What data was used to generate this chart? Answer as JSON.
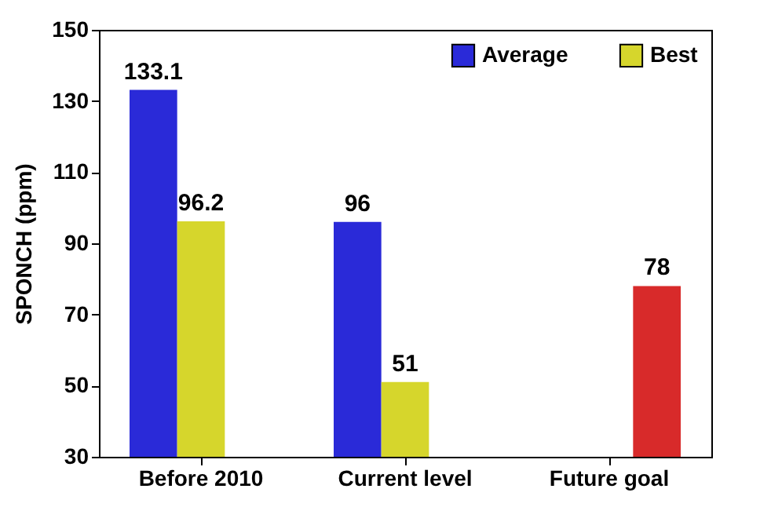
{
  "chart_data": {
    "type": "bar",
    "ylabel": "SPONCH (ppm)",
    "categories": [
      "Before 2010",
      "Current level",
      "Future goal"
    ],
    "series": [
      {
        "name": "Average",
        "color": "#2a2ad8",
        "values": [
          133.1,
          96,
          null
        ]
      },
      {
        "name": "Best",
        "color": "#d6d62c",
        "values": [
          96.2,
          51,
          null
        ]
      },
      {
        "color": "#d82a2a",
        "values": [
          null,
          null,
          78
        ]
      }
    ],
    "ylim": [
      30,
      150
    ],
    "yticks": [
      30,
      50,
      70,
      90,
      110,
      130,
      150
    ],
    "grid": false,
    "legend": "top right",
    "data_labels": true
  }
}
